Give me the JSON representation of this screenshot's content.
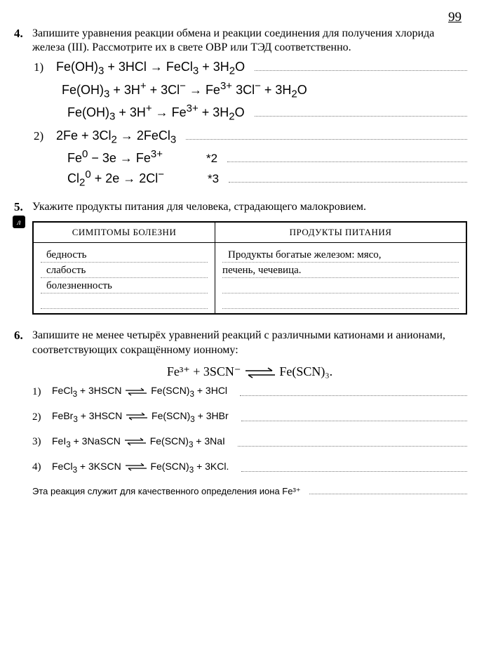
{
  "page_number": "99",
  "task4": {
    "num": "4.",
    "text": "Запишите уравнения реакции обмена и реакции соединения для получения хлорида железа (III). Рассмотрите их в свете ОВР или ТЭД соответственно.",
    "items": [
      {
        "num": "1)",
        "eq": "Fe(OH)<sub>3</sub> + 3HCl → FeCl<sub>3</sub> + 3H<sub>2</sub>O"
      },
      {
        "num": "",
        "eq": "Fe(OH)<sub>3</sub> + 3H<sup>+</sup> + 3Cl<sup>−</sup> → Fe<sup>3+</sup> 3Cl<sup>−</sup> + 3H<sub>2</sub>O"
      },
      {
        "num": "",
        "eq": "Fe(OH)<sub>3</sub> + 3H<sup>+</sup> → Fe<sup>3+</sup> + 3H<sub>2</sub>O"
      },
      {
        "num": "2)",
        "eq": "2Fe + 3Cl<sub>2</sub> → 2FeCl<sub>3</sub>"
      },
      {
        "num": "",
        "eq": "Fe<sup>0</sup> − 3e → Fe<sup>3+</sup>",
        "mult": "*2"
      },
      {
        "num": "",
        "eq": "Cl<sub>2</sub><sup>0</sup> + 2e → 2Cl<sup>−</sup>",
        "mult": "*3"
      }
    ]
  },
  "task5": {
    "num": "5.",
    "badge": "л",
    "text": "Укажите продукты питания для человека, страдающего малокровием.",
    "table": {
      "headers": [
        "СИМПТОМЫ БОЛЕЗНИ",
        "ПРОДУКТЫ ПИТАНИЯ"
      ],
      "left_lines": [
        "бедность",
        "слабость",
        "болезненность",
        ""
      ],
      "right_lines": [
        "Продукты богатые железом: мясо,",
        "печень, чечевица.",
        "",
        ""
      ]
    }
  },
  "task6": {
    "num": "6.",
    "text": "Запишите не менее четырёх уравнений реакций с различными катионами и анионами, соответствующих сокращённому ионному:",
    "ion_eq_left": "Fe³⁺ +   3SCN⁻",
    "ion_eq_right": "Fe(SCN)₃.",
    "items": [
      {
        "n": "1)",
        "l": "FeCl<sub>3</sub> + 3HSCN",
        "r": "Fe(SCN)<sub>3</sub> + 3HCl"
      },
      {
        "n": "2)",
        "l": "FeBr<sub>3</sub> + 3HSCN",
        "r": "Fe(SCN)<sub>3</sub> + 3HBr"
      },
      {
        "n": "3)",
        "l": "FeI<sub>3</sub> + 3NaSCN",
        "r": "Fe(SCN)<sub>3</sub> + 3NaI"
      },
      {
        "n": "4)",
        "l": "FeCl<sub>3</sub> + 3KSCN",
        "r": "Fe(SCN)<sub>3</sub> + 3KCl."
      }
    ],
    "footnote": "Эта реакция служит для качественного определения иона Fe³⁺"
  },
  "colors": {
    "text": "#000000",
    "bg": "#ffffff",
    "dotted": "#777777",
    "border": "#000000"
  },
  "fonts": {
    "body": "Georgia serif 16px",
    "eq": "Arial 18px",
    "small_eq": "Arial 14px"
  }
}
